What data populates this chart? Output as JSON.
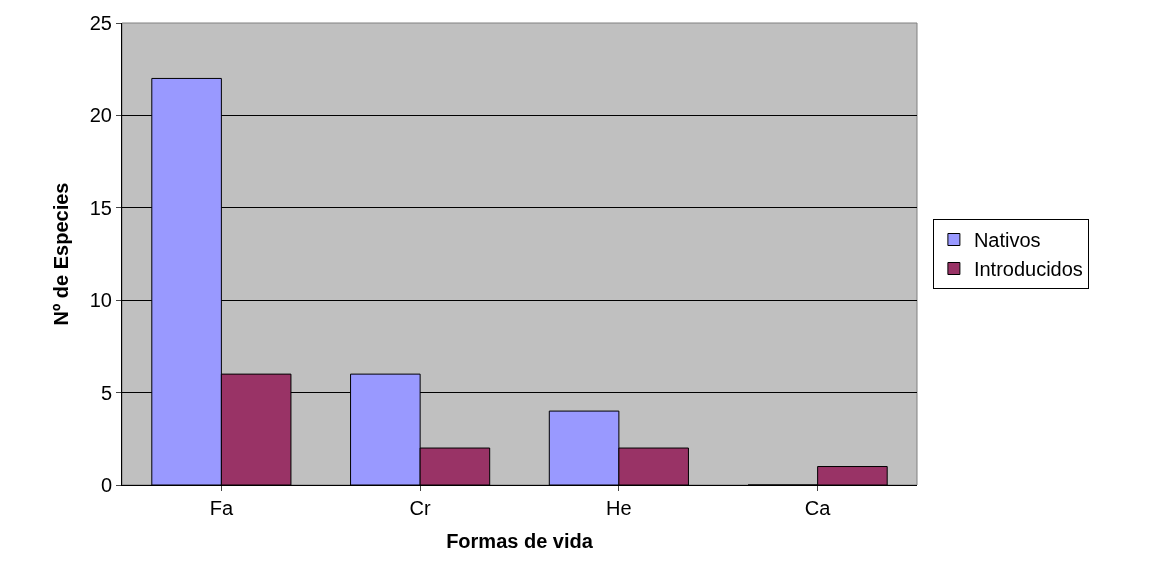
{
  "chart_data": {
    "type": "bar",
    "xlabel": "Formas de vida",
    "ylabel": "Nº de Especies",
    "categories": [
      "Fa",
      "Cr",
      "He",
      "Ca"
    ],
    "series": [
      {
        "name": "Nativos",
        "color": "#9999ff",
        "values": [
          22,
          6,
          4,
          0
        ]
      },
      {
        "name": "Introducidos",
        "color": "#993366",
        "values": [
          6,
          2,
          2,
          1
        ]
      }
    ],
    "ylim": [
      0,
      25
    ],
    "yticks": [
      0,
      5,
      10,
      15,
      20,
      25
    ],
    "grid": "y",
    "legend": "right"
  }
}
